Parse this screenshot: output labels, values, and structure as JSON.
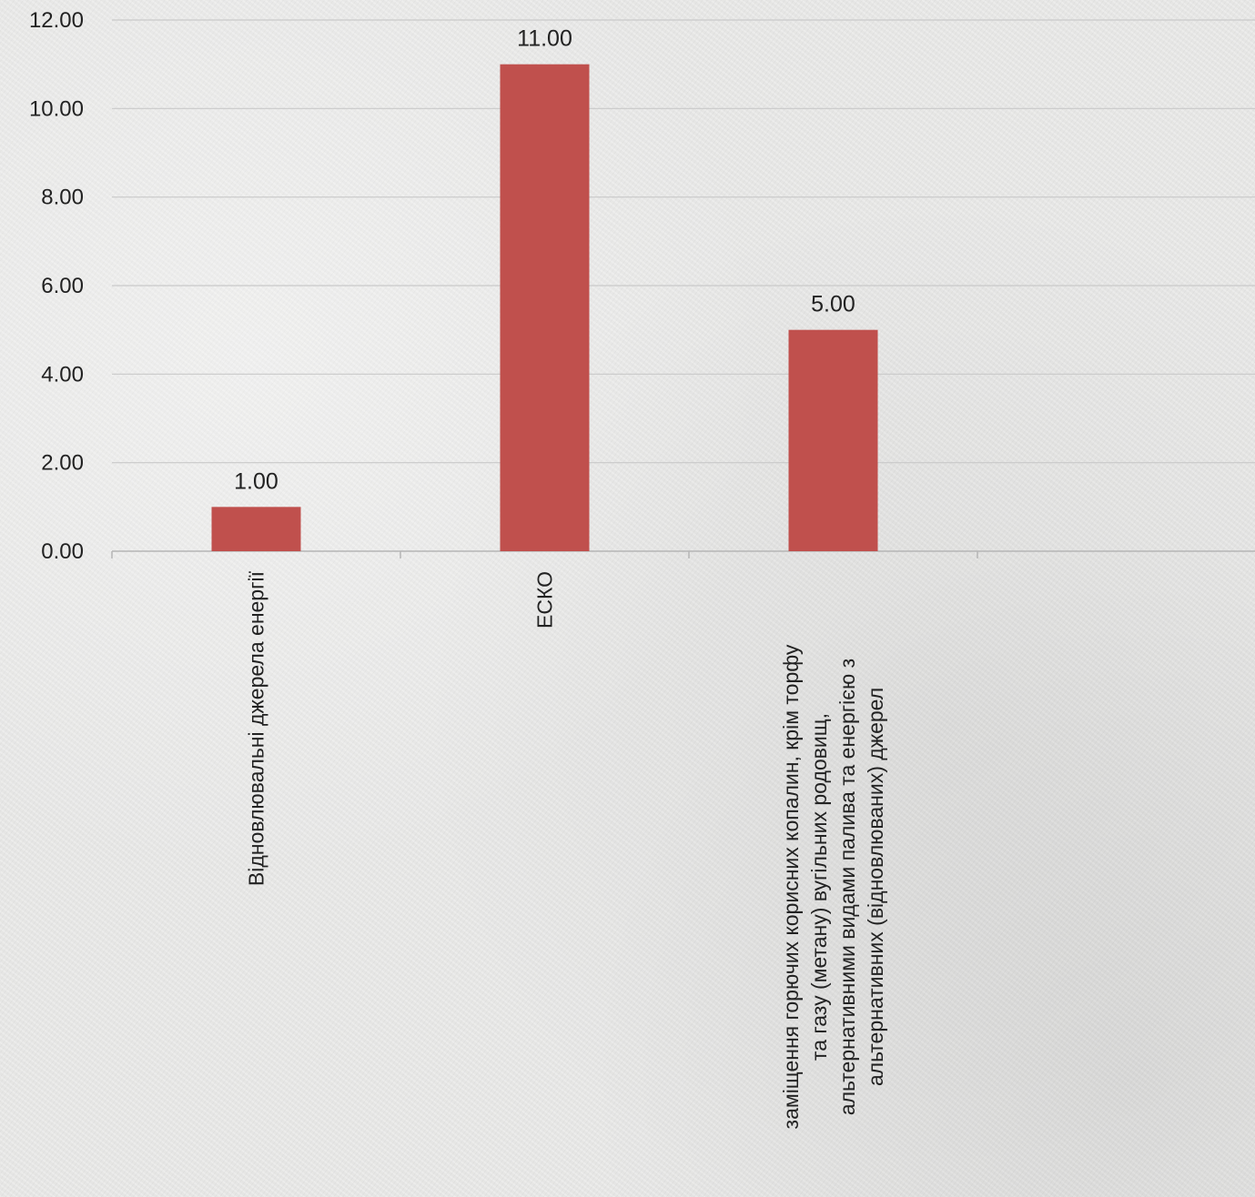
{
  "chart_data": {
    "type": "bar",
    "categories": [
      "Відновлювальні джерела енергії",
      "ЕСКО",
      "заміщення горючих корисних копалин, крім торфу та газу (метану) вугільних родовищ, альтернативними видами палива та енергією з альтернативних (відновлюваних) джерел",
      ""
    ],
    "category_lines": [
      [
        "Відновлювальні джерела енергії"
      ],
      [
        "ЕСКО"
      ],
      [
        "заміщення горючих корисних копалин, крім торфу",
        "та газу (метану) вугільних родовищ,",
        "альтернативними видами палива та енергією з",
        "альтернативних (відновлюваних) джерел"
      ],
      []
    ],
    "values": [
      1.0,
      11.0,
      5.0,
      null
    ],
    "data_labels": [
      "1.00",
      "11.00",
      "5.00",
      ""
    ],
    "ylim": [
      0,
      12
    ],
    "yticks": [
      "0.00",
      "2.00",
      "4.00",
      "6.00",
      "8.00",
      "10.00",
      "12.00"
    ],
    "grid": true,
    "legend": "none",
    "bar_color": "#c0504d",
    "title": "",
    "xlabel": "",
    "ylabel": ""
  }
}
